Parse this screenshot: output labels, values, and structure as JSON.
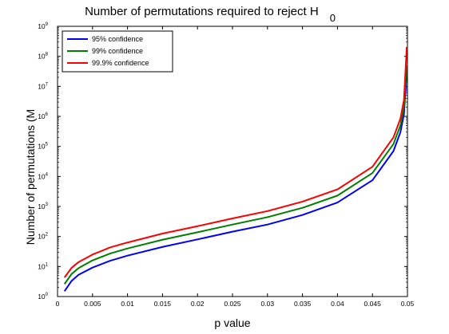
{
  "chart_data": {
    "type": "line",
    "title": "Number of permutations required to reject H",
    "title_subscript": "0",
    "xlabel": "p value",
    "ylabel": "Number of permutations (M",
    "xlim": [
      0,
      0.05
    ],
    "ylim": [
      1,
      1000000000
    ],
    "y_scale": "log",
    "grid": false,
    "legend_position": "top-left",
    "x_ticks": [
      "0",
      "0.005",
      "0.01",
      "0.015",
      "0.02",
      "0.025",
      "0.03",
      "0.035",
      "0.04",
      "0.045",
      "0.05"
    ],
    "y_ticks": [
      {
        "base": "10",
        "exp": "0"
      },
      {
        "base": "10",
        "exp": "1"
      },
      {
        "base": "10",
        "exp": "2"
      },
      {
        "base": "10",
        "exp": "3"
      },
      {
        "base": "10",
        "exp": "4"
      },
      {
        "base": "10",
        "exp": "5"
      },
      {
        "base": "10",
        "exp": "6"
      },
      {
        "base": "10",
        "exp": "7"
      },
      {
        "base": "10",
        "exp": "8"
      },
      {
        "base": "10",
        "exp": "9"
      }
    ],
    "x": [
      0.001,
      0.002,
      0.003,
      0.005,
      0.0075,
      0.01,
      0.015,
      0.02,
      0.025,
      0.03,
      0.035,
      0.04,
      0.045,
      0.048,
      0.049,
      0.0495,
      0.0499
    ],
    "series": [
      {
        "name": "95% confidence",
        "color": "#0000ff",
        "values": [
          1.5,
          3.3,
          5.3,
          9.2,
          15.5,
          23,
          45,
          80,
          145,
          250,
          520,
          1350,
          7500,
          70000,
          300000,
          1200000,
          30000000
        ]
      },
      {
        "name": "99% confidence",
        "color": "#007f00",
        "values": [
          2.6,
          5.6,
          8.8,
          16,
          27,
          40,
          78,
          138,
          250,
          440,
          900,
          2300,
          13000,
          120000,
          500000,
          2000000,
          50000000
        ]
      },
      {
        "name": "99.9% confidence",
        "color": "#ff0000",
        "values": [
          4.3,
          9,
          14,
          25,
          43,
          63,
          125,
          220,
          400,
          700,
          1450,
          3700,
          21000,
          200000,
          850000,
          3500000,
          200000000
        ]
      }
    ]
  }
}
